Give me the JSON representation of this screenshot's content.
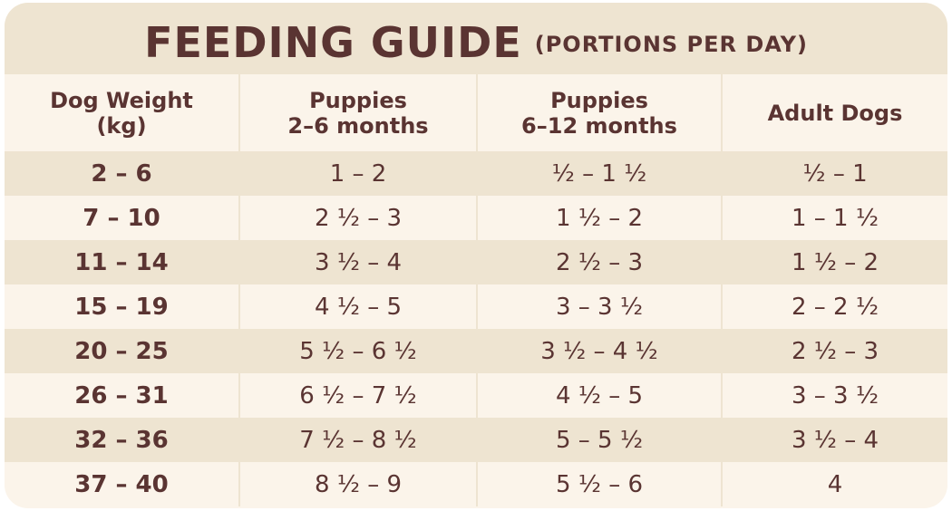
{
  "title": {
    "main": "FEEDING GUIDE",
    "sub": "(PORTIONS PER DAY)"
  },
  "headers": [
    {
      "line1": "Dog Weight",
      "line2": "(kg)"
    },
    {
      "line1": "Puppies",
      "line2": "2–6 months"
    },
    {
      "line1": "Puppies",
      "line2": "6–12 months"
    },
    {
      "line1": "Adult Dogs",
      "line2": ""
    }
  ],
  "rows": [
    {
      "weight": "2 – 6",
      "p2_6": "1 – 2",
      "p6_12": "½ – 1 ½",
      "adult": "½ – 1"
    },
    {
      "weight": "7 – 10",
      "p2_6": "2 ½ – 3",
      "p6_12": "1 ½ – 2",
      "adult": "1 – 1 ½"
    },
    {
      "weight": "11 – 14",
      "p2_6": "3 ½ – 4",
      "p6_12": "2 ½ – 3",
      "adult": "1 ½ – 2"
    },
    {
      "weight": "15 – 19",
      "p2_6": "4 ½ – 5",
      "p6_12": "3 – 3 ½",
      "adult": "2 – 2 ½"
    },
    {
      "weight": "20 – 25",
      "p2_6": "5 ½ – 6 ½",
      "p6_12": "3 ½ – 4 ½",
      "adult": "2 ½ – 3"
    },
    {
      "weight": "26 – 31",
      "p2_6": "6 ½ – 7 ½",
      "p6_12": "4 ½ – 5",
      "adult": "3 – 3 ½"
    },
    {
      "weight": "32 – 36",
      "p2_6": "7 ½ – 8 ½",
      "p6_12": "5 – 5 ½",
      "adult": "3 ½ – 4"
    },
    {
      "weight": "37 – 40",
      "p2_6": "8 ½ – 9",
      "p6_12": "5 ½ – 6",
      "adult": "4"
    }
  ],
  "colors": {
    "text": "#5a3432",
    "band": "#eee4d1",
    "light": "#fbf4ea"
  }
}
